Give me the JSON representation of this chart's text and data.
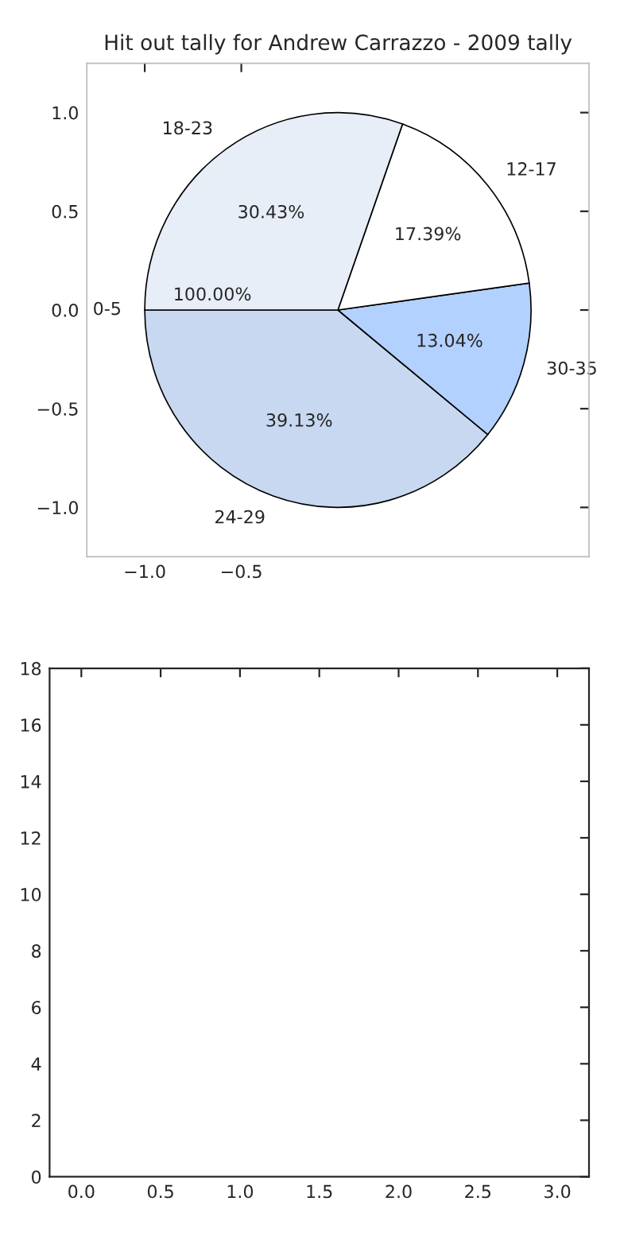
{
  "chart_data": [
    {
      "type": "pie",
      "title": "Hit out tally for Andrew Carrazzo - 2009 tally",
      "categories": [
        "0-5",
        "24-29",
        "30-35",
        "12-17",
        "18-23"
      ],
      "values": [
        0,
        39.13,
        13.04,
        17.39,
        30.43
      ],
      "value_labels": [
        null,
        "39.13%",
        "13.04%",
        "17.39%",
        "30.43%"
      ],
      "annotations": [
        "100.00%"
      ],
      "colors": [
        "#ffffff",
        "#c8d8f0",
        "#b3d1ff",
        "#ffffff",
        "#e8eef8"
      ]
    },
    {
      "type": "bar",
      "xlim": [
        -1.3,
        1.3
      ],
      "ylim": [
        -1.25,
        1.25
      ],
      "xticks": [
        {
          "value": -1.0,
          "label": "−1.0"
        },
        {
          "value": -0.5,
          "label": "−0.5"
        }
      ],
      "yticks": [
        {
          "value": -1.0,
          "label": "−1.0"
        },
        {
          "value": -0.5,
          "label": "−0.5"
        },
        {
          "value": 0.0,
          "label": "0.0"
        },
        {
          "value": 0.5,
          "label": "0.5"
        },
        {
          "value": 1.0,
          "label": "1.0"
        }
      ]
    },
    {
      "type": "bar",
      "xlim": [
        -0.2,
        3.2
      ],
      "ylim": [
        0,
        18
      ],
      "xticks": [
        {
          "value": 0,
          "label": "0.0"
        },
        0.5,
        {
          "value": 1,
          "label": "1.0"
        },
        1.5,
        {
          "value": 2,
          "label": "2.0"
        },
        2.5,
        {
          "value": 3,
          "label": "3.0"
        }
      ],
      "yticks": [
        0,
        2,
        4,
        6,
        8,
        10,
        12,
        14,
        16,
        18
      ]
    }
  ]
}
